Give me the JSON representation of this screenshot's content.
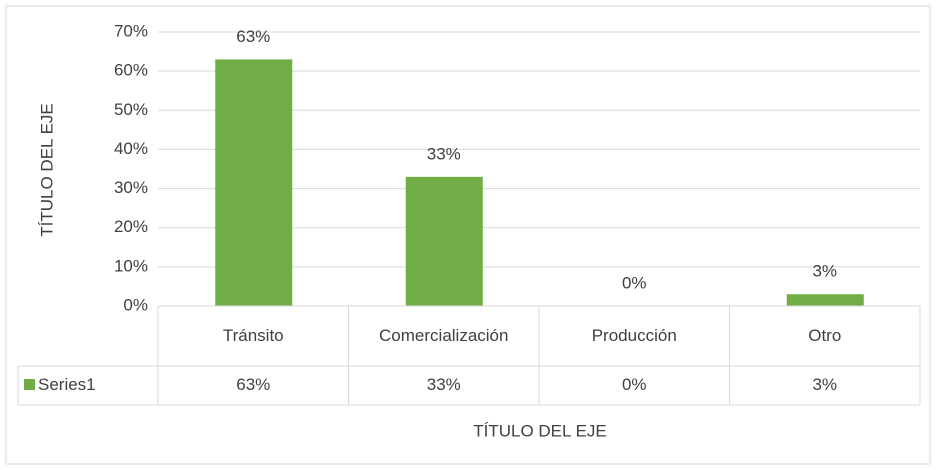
{
  "chart_data": {
    "type": "bar",
    "y_axis_label": "TÍTULO DEL EJE",
    "x_axis_label": "TÍTULO DEL EJE",
    "categories": [
      "Tránsito",
      "Comercialización",
      "Producción",
      "Otro"
    ],
    "series": [
      {
        "name": "Series1",
        "color": "#70ad47",
        "values": [
          63,
          33,
          0,
          3
        ],
        "value_labels": [
          "63%",
          "33%",
          "0%",
          "3%"
        ]
      }
    ],
    "ylim": [
      0,
      70
    ],
    "yticks": [
      {
        "value": 0,
        "label": "0%"
      },
      {
        "value": 10,
        "label": "10%"
      },
      {
        "value": 20,
        "label": "20%"
      },
      {
        "value": 30,
        "label": "30%"
      },
      {
        "value": 40,
        "label": "40%"
      },
      {
        "value": 50,
        "label": "50%"
      },
      {
        "value": 60,
        "label": "60%"
      },
      {
        "value": 70,
        "label": "70%"
      }
    ],
    "grid": true,
    "data_table": true
  }
}
